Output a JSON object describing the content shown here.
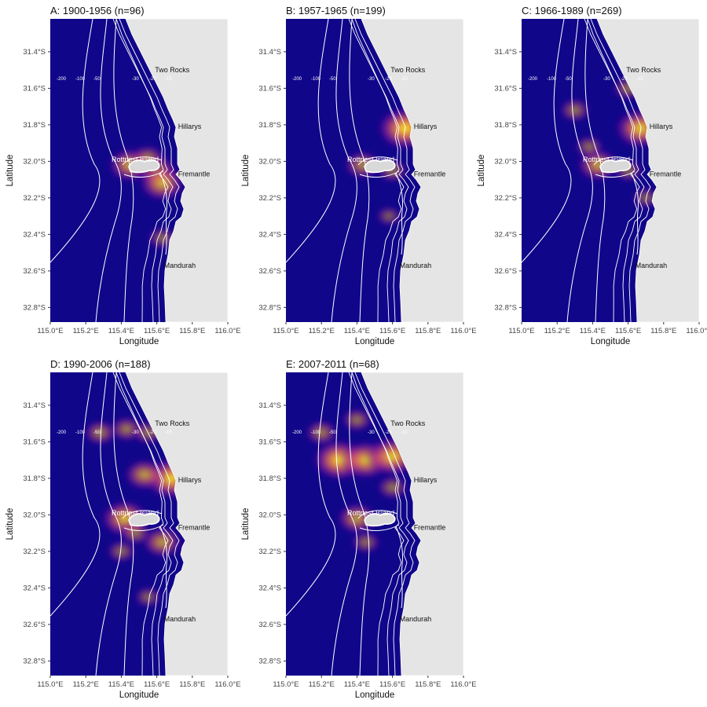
{
  "figure": {
    "axes": {
      "x_label": "Longitude",
      "y_label": "Latitude",
      "x_ticks": [
        "115.0°E",
        "115.2°E",
        "115.4°E",
        "115.6°E",
        "115.8°E",
        "116.0°E"
      ],
      "y_ticks": [
        "31.4°S",
        "31.6°S",
        "31.8°S",
        "32.0°S",
        "32.2°S",
        "32.4°S",
        "32.6°S",
        "32.8°S"
      ],
      "x_range_deg_e": [
        115.0,
        116.0
      ],
      "y_range_deg_s": [
        31.22,
        32.88
      ]
    },
    "places": [
      {
        "name": "Two Rocks",
        "lon": 115.59,
        "lat": -31.5
      },
      {
        "name": "Hillarys",
        "lon": 115.72,
        "lat": -31.81
      },
      {
        "name": "Rottnest Island",
        "lon": 115.34,
        "lat": -31.99
      },
      {
        "name": "Fremantle",
        "lon": 115.72,
        "lat": -32.07
      },
      {
        "name": "Mandurah",
        "lon": 115.64,
        "lat": -32.57
      }
    ],
    "depth_contour_labels": [
      "-200",
      "-100",
      "-50",
      "-30",
      "-20",
      "-15"
    ],
    "colors": {
      "sea_background": "#10068a",
      "land": "#e5e5e5",
      "contour": "#ffffff",
      "density_low": "#10068a",
      "density_mid": "#9c179e",
      "density_high": "#f0f921"
    },
    "panels": [
      {
        "id": "A",
        "title": "A: 1900-1956 (n=96)",
        "hotspots": [
          {
            "lon": 115.45,
            "lat": -32.02,
            "intensity": 0.65
          },
          {
            "lon": 115.6,
            "lat": -32.05,
            "intensity": 0.55
          },
          {
            "lon": 115.63,
            "lat": -32.12,
            "intensity": 0.7
          },
          {
            "lon": 115.55,
            "lat": -31.98,
            "intensity": 0.35
          },
          {
            "lon": 115.63,
            "lat": -32.42,
            "intensity": 0.25
          }
        ]
      },
      {
        "id": "B",
        "title": "B: 1957-1965 (n=199)",
        "hotspots": [
          {
            "lon": 115.67,
            "lat": -31.82,
            "intensity": 0.95
          },
          {
            "lon": 115.43,
            "lat": -32.02,
            "intensity": 0.45
          },
          {
            "lon": 115.6,
            "lat": -32.05,
            "intensity": 0.3
          },
          {
            "lon": 115.58,
            "lat": -32.3,
            "intensity": 0.15
          }
        ]
      },
      {
        "id": "C",
        "title": "C: 1966-1989 (n=269)",
        "hotspots": [
          {
            "lon": 115.67,
            "lat": -31.82,
            "intensity": 0.85
          },
          {
            "lon": 115.43,
            "lat": -32.02,
            "intensity": 0.6
          },
          {
            "lon": 115.3,
            "lat": -31.72,
            "intensity": 0.3
          },
          {
            "lon": 115.6,
            "lat": -31.6,
            "intensity": 0.3
          },
          {
            "lon": 115.38,
            "lat": -31.92,
            "intensity": 0.25
          },
          {
            "lon": 115.6,
            "lat": -32.05,
            "intensity": 0.25
          },
          {
            "lon": 115.7,
            "lat": -32.2,
            "intensity": 0.2
          }
        ]
      },
      {
        "id": "D",
        "title": "D: 1990-2006 (n=188)",
        "hotspots": [
          {
            "lon": 115.68,
            "lat": -31.8,
            "intensity": 0.9
          },
          {
            "lon": 115.42,
            "lat": -32.02,
            "intensity": 0.75
          },
          {
            "lon": 115.53,
            "lat": -31.78,
            "intensity": 0.55
          },
          {
            "lon": 115.28,
            "lat": -31.55,
            "intensity": 0.35
          },
          {
            "lon": 115.43,
            "lat": -31.53,
            "intensity": 0.35
          },
          {
            "lon": 115.55,
            "lat": -31.55,
            "intensity": 0.3
          },
          {
            "lon": 115.63,
            "lat": -32.15,
            "intensity": 0.55
          },
          {
            "lon": 115.48,
            "lat": -32.1,
            "intensity": 0.3
          },
          {
            "lon": 115.4,
            "lat": -32.2,
            "intensity": 0.25
          },
          {
            "lon": 115.55,
            "lat": -32.45,
            "intensity": 0.2
          }
        ]
      },
      {
        "id": "E",
        "title": "E: 2007-2011 (n=68)",
        "hotspots": [
          {
            "lon": 115.3,
            "lat": -31.7,
            "intensity": 0.9
          },
          {
            "lon": 115.45,
            "lat": -31.7,
            "intensity": 0.8
          },
          {
            "lon": 115.6,
            "lat": -31.68,
            "intensity": 0.85
          },
          {
            "lon": 115.4,
            "lat": -32.02,
            "intensity": 0.55
          },
          {
            "lon": 115.2,
            "lat": -31.55,
            "intensity": 0.35
          },
          {
            "lon": 115.4,
            "lat": -31.48,
            "intensity": 0.3
          },
          {
            "lon": 115.6,
            "lat": -31.85,
            "intensity": 0.3
          },
          {
            "lon": 115.45,
            "lat": -32.15,
            "intensity": 0.25
          }
        ]
      }
    ]
  }
}
